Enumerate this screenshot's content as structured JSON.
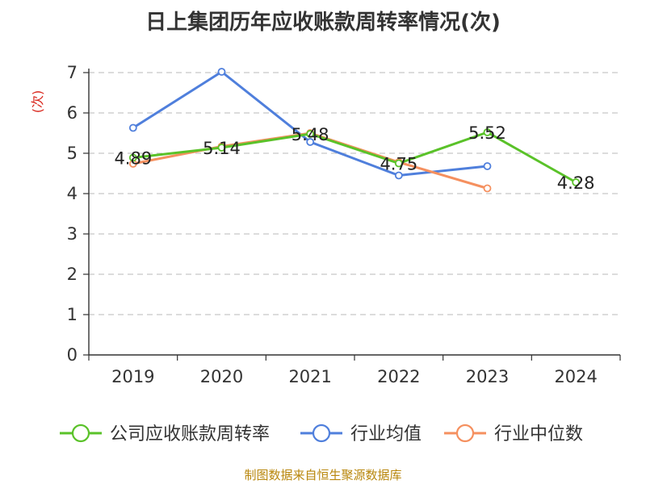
{
  "colors": {
    "company": "#5ac229",
    "industry_avg": "#4f7fdc",
    "industry_median": "#f5905f",
    "grid": "#c8c8c8",
    "axis": "#333333"
  },
  "source": "制图数据来自恒生聚源数据库",
  "chart_data": {
    "type": "line",
    "title": "日上集团历年应收账款周转率情况(次)",
    "ylabel": "(次)",
    "xlabel": "",
    "categories": [
      "2019",
      "2020",
      "2021",
      "2022",
      "2023",
      "2024"
    ],
    "ylim": [
      0,
      7
    ],
    "yticks": [
      0,
      1,
      2,
      3,
      4,
      5,
      6,
      7
    ],
    "grid": true,
    "legend_position": "bottom",
    "series": [
      {
        "name": "公司应收账款周转率",
        "color": "#5ac229",
        "values": [
          4.89,
          5.14,
          5.48,
          4.75,
          5.52,
          4.28
        ],
        "labels": [
          "4.89",
          "5.14",
          "5.48",
          "4.75",
          "5.52",
          "4.28"
        ]
      },
      {
        "name": "行业均值",
        "color": "#4f7fdc",
        "values": [
          5.63,
          7.02,
          5.28,
          4.45,
          4.68,
          null
        ]
      },
      {
        "name": "行业中位数",
        "color": "#f5905f",
        "values": [
          4.74,
          5.17,
          5.5,
          4.78,
          4.13,
          null
        ]
      }
    ]
  }
}
